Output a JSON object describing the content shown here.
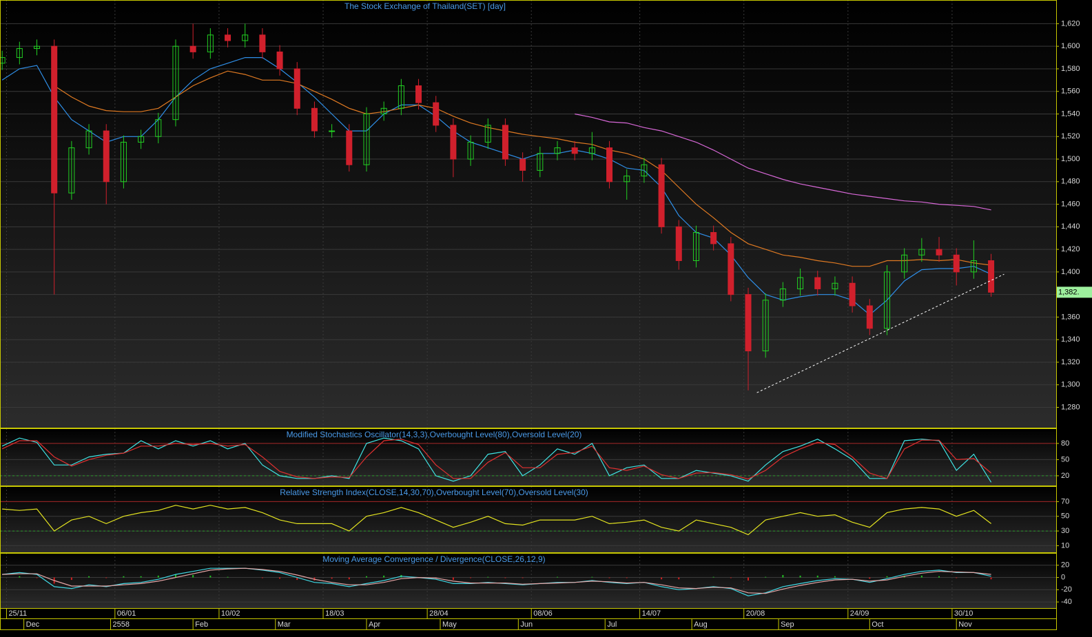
{
  "chart_data": [
    {
      "type": "candlestick",
      "title": "The Stock Exchange of Thailand(SET) [day]",
      "x": [
        0,
        4,
        8,
        12,
        16,
        20,
        24,
        28,
        32,
        36,
        40,
        44,
        48,
        52,
        56,
        60,
        64,
        68,
        72,
        76,
        80,
        84,
        88,
        92,
        96,
        100,
        104,
        108,
        112,
        116,
        120,
        124,
        128,
        132,
        136,
        140,
        144,
        148,
        152,
        156,
        160,
        164,
        168,
        172,
        176,
        180,
        184,
        188,
        192,
        196,
        200,
        204,
        208,
        212,
        216,
        220,
        224,
        228
      ],
      "open": [
        1585,
        1590,
        1598,
        1600,
        1470,
        1510,
        1525,
        1480,
        1515,
        1520,
        1535,
        1600,
        1595,
        1610,
        1605,
        1610,
        1595,
        1580,
        1545,
        1525,
        1525,
        1495,
        1540,
        1545,
        1565,
        1550,
        1530,
        1500,
        1515,
        1530,
        1500,
        1490,
        1505,
        1510,
        1505,
        1510,
        1480,
        1485,
        1495,
        1440,
        1410,
        1435,
        1425,
        1380,
        1330,
        1375,
        1385,
        1395,
        1385,
        1390,
        1370,
        1350,
        1400,
        1415,
        1420,
        1415,
        1400,
        1410
      ],
      "high": [
        1596,
        1604,
        1606,
        1606,
        1516,
        1531,
        1531,
        1521,
        1526,
        1541,
        1606,
        1620,
        1616,
        1616,
        1620,
        1616,
        1601,
        1586,
        1551,
        1531,
        1531,
        1546,
        1551,
        1571,
        1571,
        1556,
        1536,
        1521,
        1536,
        1536,
        1506,
        1511,
        1516,
        1516,
        1524,
        1516,
        1491,
        1501,
        1501,
        1446,
        1441,
        1441,
        1431,
        1386,
        1381,
        1391,
        1403,
        1401,
        1396,
        1396,
        1376,
        1406,
        1421,
        1430,
        1431,
        1421,
        1428,
        1416
      ],
      "low": [
        1579,
        1584,
        1592,
        1380,
        1464,
        1504,
        1460,
        1474,
        1509,
        1514,
        1529,
        1589,
        1589,
        1599,
        1599,
        1589,
        1574,
        1539,
        1519,
        1519,
        1489,
        1489,
        1534,
        1539,
        1544,
        1524,
        1484,
        1494,
        1509,
        1494,
        1480,
        1484,
        1499,
        1499,
        1499,
        1474,
        1464,
        1479,
        1434,
        1402,
        1404,
        1419,
        1374,
        1295,
        1324,
        1369,
        1379,
        1379,
        1379,
        1364,
        1344,
        1344,
        1394,
        1409,
        1409,
        1388,
        1394,
        1378
      ],
      "close": [
        1590,
        1598,
        1600,
        1470,
        1510,
        1525,
        1480,
        1515,
        1520,
        1535,
        1600,
        1595,
        1610,
        1605,
        1610,
        1595,
        1580,
        1545,
        1525,
        1525,
        1495,
        1540,
        1545,
        1565,
        1550,
        1530,
        1500,
        1515,
        1530,
        1500,
        1490,
        1505,
        1510,
        1505,
        1510,
        1480,
        1485,
        1495,
        1440,
        1410,
        1435,
        1425,
        1380,
        1330,
        1375,
        1385,
        1395,
        1385,
        1390,
        1370,
        1350,
        1400,
        1415,
        1420,
        1415,
        1400,
        1410,
        1382
      ],
      "up_color": "#22d022",
      "down_color": "#d0202c",
      "lines": [
        {
          "color": "#2f8fe8",
          "values": [
            1570,
            1580,
            1583,
            1555,
            1535,
            1525,
            1515,
            1520,
            1520,
            1535,
            1555,
            1570,
            1580,
            1585,
            1590,
            1590,
            1580,
            1568,
            1555,
            1540,
            1525,
            1525,
            1540,
            1548,
            1548,
            1538,
            1525,
            1515,
            1510,
            1505,
            1500,
            1505,
            1505,
            1508,
            1505,
            1500,
            1492,
            1490,
            1475,
            1450,
            1435,
            1430,
            1415,
            1395,
            1380,
            1375,
            1378,
            1380,
            1380,
            1375,
            1362,
            1375,
            1392,
            1402,
            1403,
            1403,
            1405,
            1398
          ]
        },
        {
          "color": "#e07a22",
          "values": [
            null,
            null,
            null,
            1565,
            1555,
            1547,
            1543,
            1542,
            1542,
            1545,
            1555,
            1565,
            1572,
            1578,
            1575,
            1570,
            1570,
            1567,
            1560,
            1553,
            1545,
            1540,
            1542,
            1545,
            1548,
            1545,
            1538,
            1532,
            1528,
            1525,
            1522,
            1520,
            1518,
            1515,
            1513,
            1508,
            1505,
            1500,
            1490,
            1475,
            1460,
            1448,
            1435,
            1425,
            1420,
            1415,
            1413,
            1410,
            1408,
            1405,
            1405,
            1410,
            1410,
            1411,
            1410,
            1411,
            1408,
            1406
          ]
        },
        {
          "color": "#d868d8",
          "values": [
            null,
            null,
            null,
            null,
            null,
            null,
            null,
            null,
            null,
            null,
            null,
            null,
            null,
            null,
            null,
            null,
            null,
            null,
            null,
            null,
            null,
            null,
            null,
            null,
            null,
            null,
            null,
            null,
            null,
            null,
            null,
            null,
            null,
            1540,
            1537,
            1533,
            1532,
            1528,
            1525,
            1520,
            1515,
            1508,
            1500,
            1492,
            1487,
            1482,
            1478,
            1475,
            1472,
            1469,
            1467,
            1465,
            1463,
            1462,
            1460,
            1459,
            1458,
            1455
          ]
        }
      ],
      "trendline": {
        "x": [
          174,
          231
        ],
        "values": [
          1293,
          1398
        ],
        "color": "#ffffff"
      },
      "last_price": {
        "value": 1382,
        "label": "1,382."
      },
      "last_color": "#9ef09e",
      "xlim": [
        -0.5,
        243
      ],
      "ylim": [
        1262,
        1641
      ],
      "yticks": [
        {
          "value": 1280,
          "label": "1,280"
        },
        {
          "value": 1300,
          "label": "1,300"
        },
        {
          "value": 1320,
          "label": "1,320"
        },
        {
          "value": 1340,
          "label": "1,340"
        },
        {
          "value": 1360,
          "label": "1,360"
        },
        {
          "value": 1380,
          "label": "1,380"
        },
        {
          "value": 1400,
          "label": "1,400"
        },
        {
          "value": 1420,
          "label": "1,420"
        },
        {
          "value": 1440,
          "label": "1,440"
        },
        {
          "value": 1460,
          "label": "1,460"
        },
        {
          "value": 1480,
          "label": "1,480"
        },
        {
          "value": 1500,
          "label": "1,500"
        },
        {
          "value": 1520,
          "label": "1,520"
        },
        {
          "value": 1540,
          "label": "1,540"
        },
        {
          "value": 1560,
          "label": "1,560"
        },
        {
          "value": 1580,
          "label": "1,580"
        },
        {
          "value": 1600,
          "label": "1,600"
        },
        {
          "value": 1620,
          "label": "1,620"
        }
      ],
      "xticks": [
        {
          "value": 1,
          "label": "25/11"
        },
        {
          "value": 26,
          "label": "06/01"
        },
        {
          "value": 50,
          "label": "10/02"
        },
        {
          "value": 74,
          "label": "18/03"
        },
        {
          "value": 98,
          "label": "28/04"
        },
        {
          "value": 122,
          "label": "08/06"
        },
        {
          "value": 147,
          "label": "14/07"
        },
        {
          "value": 171,
          "label": "20/08"
        },
        {
          "value": 195,
          "label": "24/09"
        },
        {
          "value": 219,
          "label": "30/10"
        }
      ],
      "month_ticks": [
        {
          "value": 5,
          "label": "Dec"
        },
        {
          "value": 25,
          "label": "2558"
        },
        {
          "value": 44,
          "label": "Feb"
        },
        {
          "value": 63,
          "label": "Mar"
        },
        {
          "value": 84,
          "label": "Apr"
        },
        {
          "value": 101,
          "label": "May"
        },
        {
          "value": 119,
          "label": "Jun"
        },
        {
          "value": 139,
          "label": "Jul"
        },
        {
          "value": 159,
          "label": "Aug"
        },
        {
          "value": 179,
          "label": "Sep"
        },
        {
          "value": 200,
          "label": "Oct"
        },
        {
          "value": 220,
          "label": "Nov"
        }
      ],
      "grid": true
    },
    {
      "type": "line",
      "title": "Modified Stochastics Oscillator(14,3,3),Overbought Level(80),Oversold Level(20)",
      "series": [
        {
          "color": "#40e4e4",
          "values": [
            75,
            90,
            82,
            40,
            40,
            55,
            60,
            62,
            85,
            70,
            85,
            75,
            85,
            70,
            80,
            40,
            20,
            15,
            15,
            20,
            15,
            80,
            90,
            85,
            70,
            20,
            10,
            20,
            60,
            65,
            20,
            40,
            70,
            60,
            80,
            20,
            35,
            40,
            15,
            15,
            30,
            25,
            20,
            10,
            40,
            65,
            75,
            88,
            70,
            50,
            15,
            15,
            85,
            88,
            85,
            30,
            60,
            8
          ]
        },
        {
          "color": "#e03030",
          "values": [
            70,
            85,
            85,
            55,
            38,
            50,
            58,
            62,
            75,
            75,
            80,
            78,
            80,
            75,
            78,
            55,
            28,
            18,
            15,
            18,
            17,
            55,
            85,
            88,
            78,
            40,
            15,
            15,
            45,
            63,
            35,
            35,
            60,
            63,
            75,
            35,
            30,
            38,
            22,
            15,
            25,
            26,
            22,
            14,
            30,
            55,
            70,
            82,
            78,
            55,
            25,
            15,
            70,
            86,
            86,
            50,
            52,
            25
          ]
        }
      ],
      "levels": [
        {
          "value": 80,
          "color": "#a02020",
          "dash": false
        },
        {
          "value": 20,
          "color": "#2a9a2a",
          "dash": true
        }
      ],
      "ylim": [
        2,
        108
      ],
      "yticks": [
        20,
        50,
        80
      ],
      "grid": true
    },
    {
      "type": "line",
      "title": "Relative Strength Index(CLOSE,14,30,70),Overbought Level(70),Oversold Level(30)",
      "series": [
        {
          "color": "#e4e420",
          "values": [
            60,
            58,
            60,
            30,
            45,
            50,
            40,
            50,
            55,
            58,
            65,
            60,
            65,
            60,
            62,
            55,
            45,
            40,
            40,
            40,
            30,
            50,
            55,
            62,
            55,
            45,
            35,
            42,
            50,
            40,
            38,
            45,
            45,
            45,
            50,
            40,
            42,
            45,
            35,
            30,
            45,
            40,
            35,
            25,
            45,
            50,
            55,
            50,
            52,
            42,
            35,
            55,
            60,
            62,
            60,
            50,
            58,
            40
          ]
        }
      ],
      "levels": [
        {
          "value": 70,
          "color": "#a02020",
          "dash": false
        },
        {
          "value": 30,
          "color": "#2a9a2a",
          "dash": true
        }
      ],
      "ylim": [
        1,
        91
      ],
      "yticks": [
        10,
        30,
        50,
        70
      ],
      "grid": true
    },
    {
      "type": "line",
      "title": "Moving Average Convergence / Divergence(CLOSE,26,12,9)",
      "series": [
        {
          "color": "#40d8e4",
          "values": [
            5,
            8,
            5,
            -15,
            -18,
            -12,
            -15,
            -10,
            -8,
            -3,
            5,
            10,
            15,
            15,
            15,
            12,
            8,
            0,
            -8,
            -10,
            -15,
            -10,
            -5,
            2,
            0,
            -3,
            -10,
            -10,
            -8,
            -10,
            -12,
            -10,
            -8,
            -8,
            -5,
            -8,
            -10,
            -8,
            -15,
            -20,
            -18,
            -15,
            -18,
            -30,
            -25,
            -15,
            -10,
            -5,
            -2,
            -3,
            -8,
            -2,
            5,
            10,
            12,
            8,
            8,
            2
          ]
        },
        {
          "color": "#e8a8a8",
          "values": [
            5,
            6,
            6,
            -5,
            -14,
            -14,
            -14,
            -12,
            -10,
            -6,
            0,
            6,
            12,
            14,
            15,
            13,
            10,
            4,
            -3,
            -8,
            -12,
            -12,
            -8,
            -2,
            0,
            -1,
            -6,
            -9,
            -9,
            -9,
            -11,
            -10,
            -9,
            -8,
            -6,
            -7,
            -9,
            -8,
            -12,
            -17,
            -18,
            -16,
            -17,
            -25,
            -26,
            -19,
            -13,
            -8,
            -4,
            -3,
            -6,
            -4,
            2,
            7,
            10,
            9,
            8,
            5
          ]
        }
      ],
      "bars": {
        "up_color": "#22c022",
        "down_color": "#d02020",
        "values": [
          0,
          2,
          -1,
          -10,
          -4,
          2,
          -1,
          2,
          2,
          3,
          5,
          4,
          3,
          1,
          0,
          -1,
          -2,
          -4,
          -5,
          -2,
          -3,
          2,
          3,
          4,
          0,
          -2,
          -4,
          -1,
          1,
          -1,
          -1,
          0,
          1,
          0,
          1,
          -1,
          -1,
          0,
          -3,
          -3,
          0,
          1,
          -1,
          -5,
          1,
          4,
          3,
          3,
          2,
          0,
          -2,
          2,
          3,
          3,
          2,
          -1,
          0,
          -3
        ]
      },
      "ylim": [
        -50,
        40
      ],
      "yticks": [
        -40,
        -20,
        0,
        20
      ],
      "grid": true
    }
  ]
}
